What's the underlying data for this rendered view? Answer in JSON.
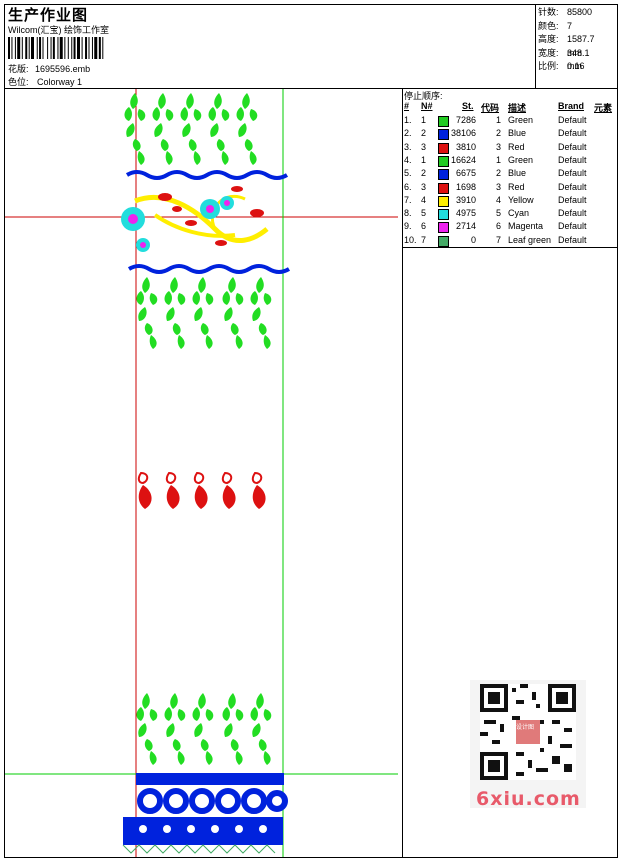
{
  "header": {
    "title": "生产作业图",
    "company": "Wilcom(汇宝) 绘饰工作室",
    "file_label": "花版:",
    "file_name": "1695596.emb",
    "colorway_label": "色位:",
    "colorway": "Colorway 1"
  },
  "stats": [
    {
      "label": "针数:",
      "value": "85800"
    },
    {
      "label": "颜色:",
      "value": "7"
    },
    {
      "label": "高度:",
      "value": "1587.7 mm"
    },
    {
      "label": "宽度:",
      "value": "348.1 mm"
    },
    {
      "label": "比例:",
      "value": "0.16"
    }
  ],
  "stop_sequence": {
    "title": "停止顺序:",
    "columns": {
      "index": "#",
      "needle": "N#",
      "stitches": "St.",
      "code": "代码",
      "desc": "描述",
      "brand": "Brand",
      "element": "元素"
    },
    "rows": [
      {
        "index": "1.",
        "needle": "1",
        "color": "#22cc22",
        "stitches": "7286",
        "code": "1",
        "desc": "Green",
        "brand": "Default"
      },
      {
        "index": "2.",
        "needle": "2",
        "color": "#0022dd",
        "stitches": "38106",
        "code": "2",
        "desc": "Blue",
        "brand": "Default"
      },
      {
        "index": "3.",
        "needle": "3",
        "color": "#dd1111",
        "stitches": "3810",
        "code": "3",
        "desc": "Red",
        "brand": "Default"
      },
      {
        "index": "4.",
        "needle": "1",
        "color": "#22cc22",
        "stitches": "16624",
        "code": "1",
        "desc": "Green",
        "brand": "Default"
      },
      {
        "index": "5.",
        "needle": "2",
        "color": "#0022dd",
        "stitches": "6675",
        "code": "2",
        "desc": "Blue",
        "brand": "Default"
      },
      {
        "index": "6.",
        "needle": "3",
        "color": "#dd1111",
        "stitches": "1698",
        "code": "3",
        "desc": "Red",
        "brand": "Default"
      },
      {
        "index": "7.",
        "needle": "4",
        "color": "#ffee00",
        "stitches": "3910",
        "code": "4",
        "desc": "Yellow",
        "brand": "Default"
      },
      {
        "index": "8.",
        "needle": "5",
        "color": "#22dddd",
        "stitches": "4975",
        "code": "5",
        "desc": "Cyan",
        "brand": "Default"
      },
      {
        "index": "9.",
        "needle": "6",
        "color": "#ee22ee",
        "stitches": "2714",
        "code": "6",
        "desc": "Magenta",
        "brand": "Default"
      },
      {
        "index": "10.",
        "needle": "7",
        "color": "#44aa66",
        "stitches": "0",
        "code": "7",
        "desc": "Leaf green",
        "brand": "Default"
      }
    ]
  },
  "watermark": {
    "text": "6xiu.com",
    "badge": "设计图"
  }
}
